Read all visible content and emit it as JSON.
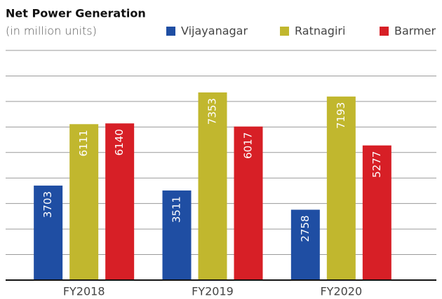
{
  "chart_data": {
    "type": "bar",
    "title": "Net Power Generation",
    "subtitle": "(in million units)",
    "categories": [
      "FY2018",
      "FY2019",
      "FY2020"
    ],
    "series": [
      {
        "name": "Vijayanagar",
        "color": "#1f4ea3",
        "values": [
          3703,
          3511,
          2758
        ]
      },
      {
        "name": "Ratnagiri",
        "color": "#c1b72e",
        "values": [
          6111,
          7353,
          7193
        ]
      },
      {
        "name": "Barmer",
        "color": "#d71f26",
        "values": [
          6140,
          6017,
          5277
        ]
      }
    ],
    "ylim": [
      0,
      9000
    ],
    "yticks": [
      0,
      1000,
      2000,
      3000,
      4000,
      5000,
      6000,
      7000,
      8000,
      9000
    ],
    "grid": true
  }
}
